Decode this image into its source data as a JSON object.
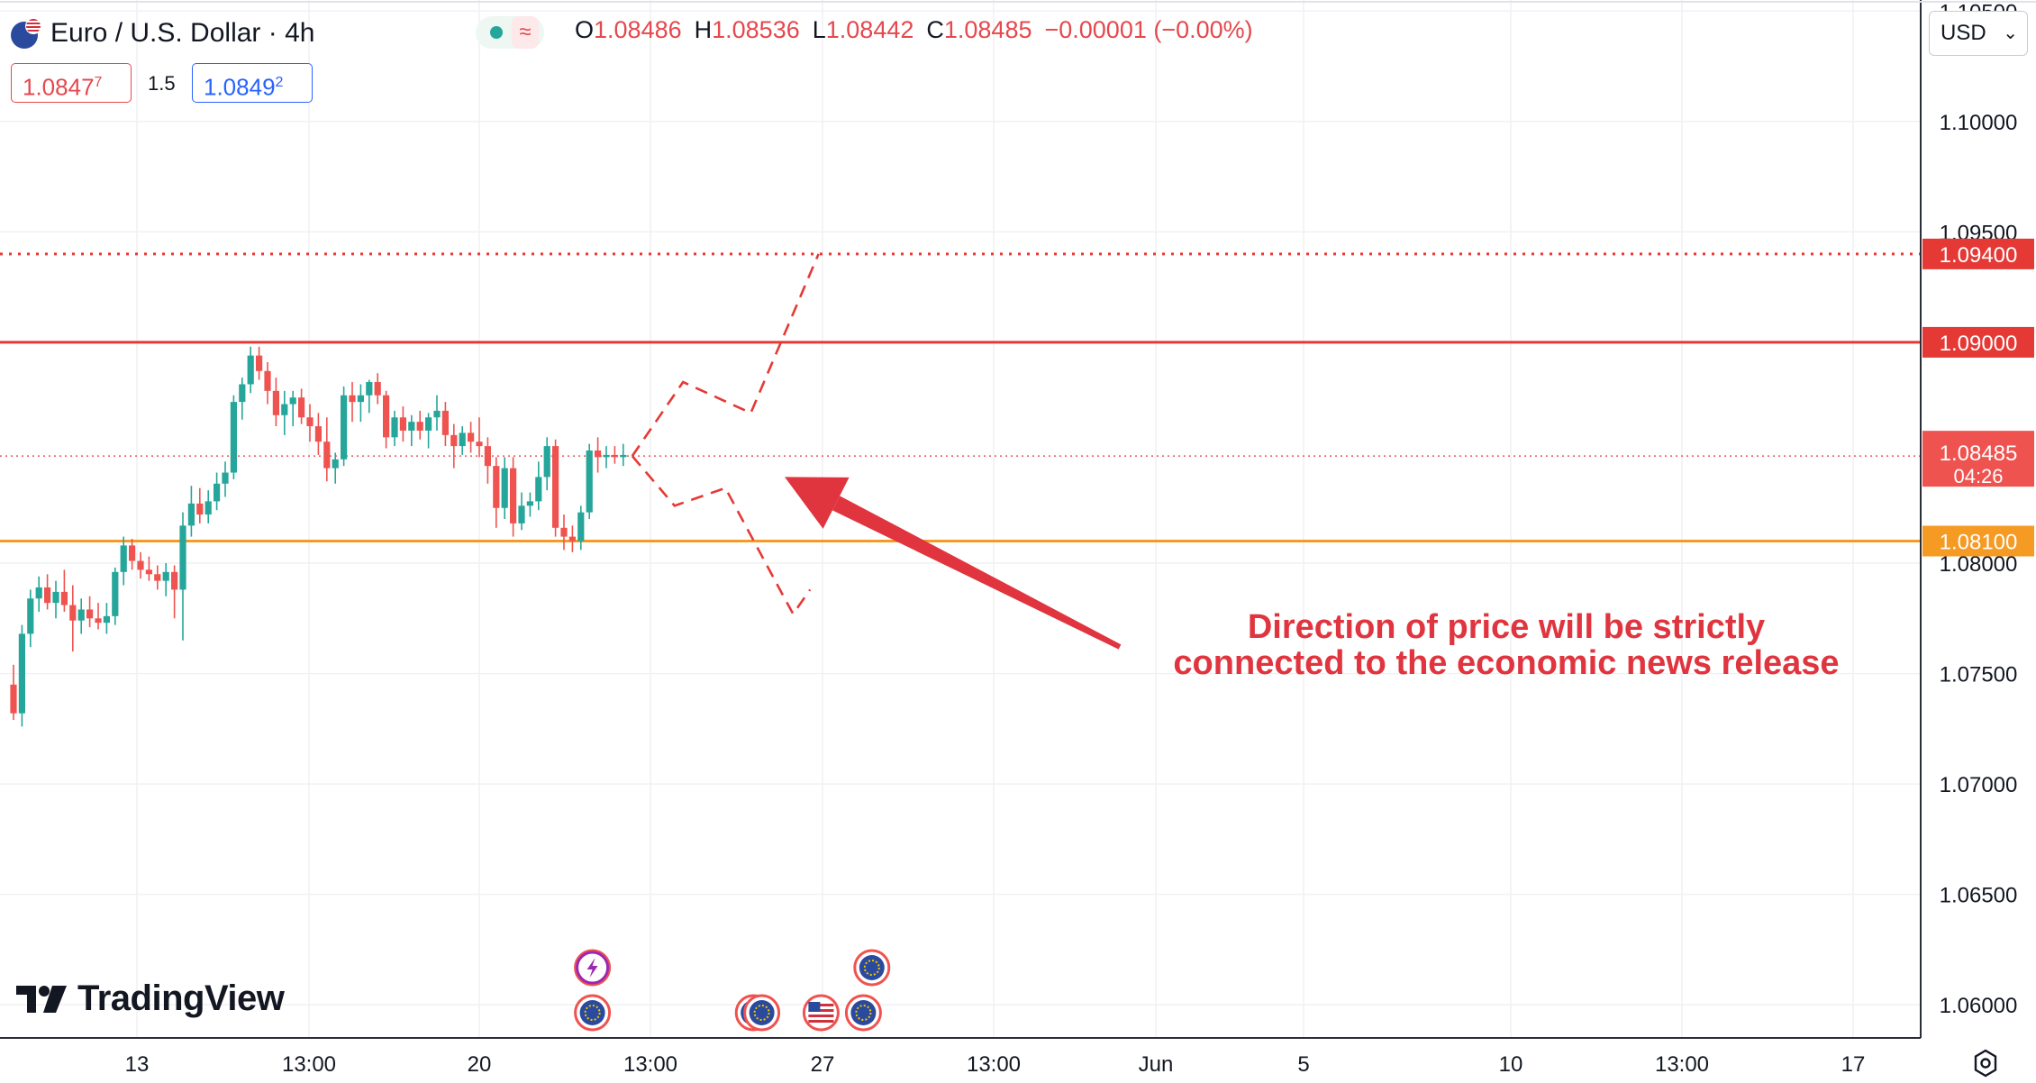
{
  "header": {
    "symbol_title": "Euro / U.S. Dollar · 4h",
    "ohlc": [
      {
        "label": "O",
        "value": "1.08486"
      },
      {
        "label": "H",
        "value": "1.08536"
      },
      {
        "label": "L",
        "value": "1.08442"
      },
      {
        "label": "C",
        "value": "1.08485"
      },
      {
        "label": "",
        "value": "−0.00001 (−0.00%)"
      }
    ],
    "status_icon": "wave-icon",
    "sell_price": "1.0847",
    "sell_price_sup": "7",
    "spread": "1.5",
    "buy_price": "1.0849",
    "buy_price_sup": "2",
    "currency": "USD"
  },
  "branding": {
    "logo_text": "TradingView"
  },
  "colors": {
    "up": "#26a69a",
    "down": "#ef5350",
    "resistance": "#e53935",
    "support": "#f59a23",
    "annotation": "#e0353f",
    "grid": "#f0f1f4"
  },
  "chart_data": {
    "type": "candlestick",
    "symbol": "EURUSD",
    "timeframe": "4h",
    "x_labels": [
      "13",
      "13:00",
      "20",
      "13:00",
      "27",
      "13:00",
      "Jun",
      "5",
      "10",
      "13:00",
      "17"
    ],
    "y_ticks": [
      "1.10500",
      "1.10000",
      "1.09500",
      "1.08000",
      "1.07500",
      "1.07000",
      "1.06500",
      "1.06000"
    ],
    "ylim": [
      1.0585,
      1.1055
    ],
    "grid": true,
    "levels": [
      {
        "price": 1.094,
        "label": "1.09400",
        "style": "dotted",
        "color": "#e53935"
      },
      {
        "price": 1.09,
        "label": "1.09000",
        "style": "solid",
        "color": "#e53935"
      },
      {
        "price": 1.081,
        "label": "1.08100",
        "style": "solid",
        "color": "#f59a23"
      }
    ],
    "current_price": {
      "value": 1.08485,
      "label": "1.08485",
      "countdown": "04:26"
    },
    "candles": [
      [
        1.0745,
        1.0754,
        1.0729,
        1.0732
      ],
      [
        1.0732,
        1.0772,
        1.0726,
        1.0768
      ],
      [
        1.0768,
        1.0788,
        1.0762,
        1.0784
      ],
      [
        1.0784,
        1.0794,
        1.0778,
        1.0789
      ],
      [
        1.0789,
        1.0795,
        1.0779,
        1.0782
      ],
      [
        1.0782,
        1.0792,
        1.0775,
        1.0787
      ],
      [
        1.0787,
        1.0797,
        1.0778,
        1.0781
      ],
      [
        1.0781,
        1.079,
        1.076,
        1.0774
      ],
      [
        1.0774,
        1.0784,
        1.0768,
        1.0779
      ],
      [
        1.0779,
        1.0785,
        1.0771,
        1.0775
      ],
      [
        1.0775,
        1.0782,
        1.077,
        1.0773
      ],
      [
        1.0773,
        1.0782,
        1.0768,
        1.0776
      ],
      [
        1.0776,
        1.0798,
        1.0772,
        1.0796
      ],
      [
        1.0796,
        1.0812,
        1.079,
        1.0808
      ],
      [
        1.0808,
        1.0811,
        1.0797,
        1.0801
      ],
      [
        1.0801,
        1.0805,
        1.0793,
        1.0797
      ],
      [
        1.0797,
        1.0803,
        1.0792,
        1.0795
      ],
      [
        1.0795,
        1.0799,
        1.0788,
        1.0792
      ],
      [
        1.0792,
        1.08,
        1.0785,
        1.0796
      ],
      [
        1.0796,
        1.0799,
        1.0775,
        1.0788
      ],
      [
        1.0788,
        1.0823,
        1.0765,
        1.0817
      ],
      [
        1.0817,
        1.0835,
        1.0812,
        1.0827
      ],
      [
        1.0827,
        1.0834,
        1.0818,
        1.0822
      ],
      [
        1.0822,
        1.0833,
        1.0818,
        1.0828
      ],
      [
        1.0828,
        1.0841,
        1.0824,
        1.0836
      ],
      [
        1.0836,
        1.0846,
        1.083,
        1.0841
      ],
      [
        1.0841,
        1.0876,
        1.0838,
        1.0873
      ],
      [
        1.0873,
        1.0884,
        1.0865,
        1.0881
      ],
      [
        1.0881,
        1.0898,
        1.0877,
        1.0894
      ],
      [
        1.0894,
        1.0898,
        1.0883,
        1.0887
      ],
      [
        1.0887,
        1.0891,
        1.0872,
        1.0878
      ],
      [
        1.0878,
        1.0884,
        1.0862,
        1.0867
      ],
      [
        1.0867,
        1.0878,
        1.0858,
        1.0872
      ],
      [
        1.0872,
        1.0878,
        1.0862,
        1.0875
      ],
      [
        1.0875,
        1.0879,
        1.0863,
        1.0866
      ],
      [
        1.0866,
        1.0872,
        1.0855,
        1.0862
      ],
      [
        1.0862,
        1.0868,
        1.0849,
        1.0855
      ],
      [
        1.0855,
        1.0866,
        1.0837,
        1.0843
      ],
      [
        1.0843,
        1.085,
        1.0836,
        1.0847
      ],
      [
        1.0847,
        1.088,
        1.0844,
        1.0876
      ],
      [
        1.0876,
        1.0882,
        1.0864,
        1.0873
      ],
      [
        1.0873,
        1.0881,
        1.0864,
        1.0876
      ],
      [
        1.0876,
        1.0883,
        1.0868,
        1.0882
      ],
      [
        1.0882,
        1.0886,
        1.0872,
        1.0876
      ],
      [
        1.0876,
        1.0878,
        1.0852,
        1.0857
      ],
      [
        1.0857,
        1.0869,
        1.0853,
        1.0866
      ],
      [
        1.0866,
        1.0871,
        1.0855,
        1.086
      ],
      [
        1.086,
        1.0867,
        1.0853,
        1.0864
      ],
      [
        1.0864,
        1.0869,
        1.0856,
        1.086
      ],
      [
        1.086,
        1.0868,
        1.0852,
        1.0866
      ],
      [
        1.0866,
        1.0876,
        1.086,
        1.0869
      ],
      [
        1.0869,
        1.0873,
        1.0853,
        1.0858
      ],
      [
        1.0858,
        1.0863,
        1.0843,
        1.0853
      ],
      [
        1.0853,
        1.0862,
        1.0849,
        1.0859
      ],
      [
        1.0859,
        1.0864,
        1.085,
        1.0855
      ],
      [
        1.0855,
        1.0866,
        1.0848,
        1.0853
      ],
      [
        1.0853,
        1.0857,
        1.0836,
        1.0844
      ],
      [
        1.0844,
        1.0848,
        1.0816,
        1.0825
      ],
      [
        1.0825,
        1.0848,
        1.082,
        1.0843
      ],
      [
        1.0843,
        1.0848,
        1.0812,
        1.0818
      ],
      [
        1.0818,
        1.0832,
        1.0815,
        1.0826
      ],
      [
        1.0826,
        1.0832,
        1.0821,
        1.0828
      ],
      [
        1.0828,
        1.0846,
        1.0824,
        1.0839
      ],
      [
        1.0839,
        1.0857,
        1.0833,
        1.0853
      ],
      [
        1.0853,
        1.0856,
        1.0812,
        1.0816
      ],
      [
        1.0816,
        1.0822,
        1.0806,
        1.0812
      ],
      [
        1.0812,
        1.0817,
        1.0805,
        1.081
      ],
      [
        1.081,
        1.0826,
        1.0806,
        1.0823
      ],
      [
        1.0823,
        1.0854,
        1.082,
        1.0851
      ],
      [
        1.0851,
        1.0857,
        1.0841,
        1.0848
      ],
      [
        1.0848,
        1.0853,
        1.0843,
        1.0849
      ],
      [
        1.0849,
        1.0853,
        1.0845,
        1.0848
      ],
      [
        1.0848,
        1.0854,
        1.0844,
        1.0849
      ]
    ],
    "scenario_paths": {
      "up": [
        [
          0,
          1.08485
        ],
        [
          6,
          1.0882
        ],
        [
          14,
          1.0868
        ],
        [
          22,
          1.094
        ]
      ],
      "down": [
        [
          0,
          1.08485
        ],
        [
          5,
          1.0826
        ],
        [
          11,
          1.0834
        ],
        [
          18,
          1.0784
        ],
        [
          19,
          1.0777
        ],
        [
          21,
          1.0788
        ]
      ]
    },
    "annotation": {
      "text": [
        "Direction of price will be strictly",
        "connected to the economic news release"
      ],
      "arrow_to": [
        18,
        1.0839
      ]
    },
    "events": [
      {
        "icon": "lightning-icon",
        "x": 69,
        "row": 1
      },
      {
        "icon": "eu-flag-icon",
        "x": 69,
        "row": 0
      },
      {
        "icon": "eu-flag-icon",
        "x": 88,
        "row": 0
      },
      {
        "icon": "eu-flag-icon",
        "x": 89,
        "row": 0
      },
      {
        "icon": "us-flag-icon",
        "x": 96,
        "row": 0
      },
      {
        "icon": "eu-flag-icon",
        "x": 101,
        "row": 0
      },
      {
        "icon": "eu-flag-icon",
        "x": 102,
        "row": 1
      }
    ]
  }
}
